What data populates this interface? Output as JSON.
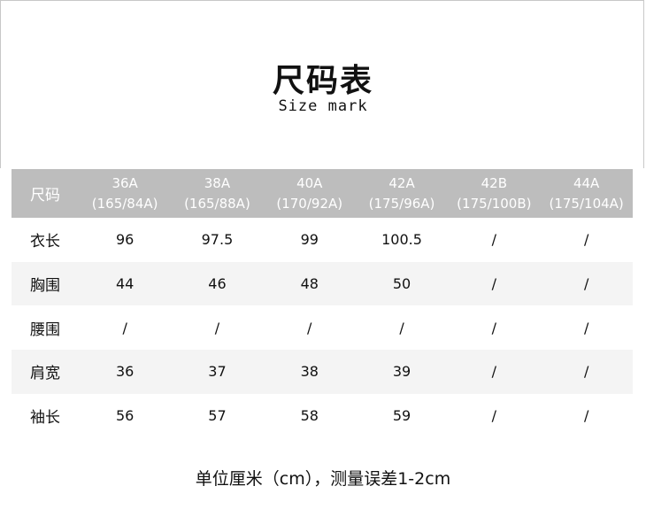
{
  "title": "尺码表",
  "subtitle": "Size mark",
  "table": {
    "header_label": "尺码",
    "columns": [
      {
        "size": "36A",
        "spec": "(165/84A)"
      },
      {
        "size": "38A",
        "spec": "(165/88A)"
      },
      {
        "size": "40A",
        "spec": "(170/92A)"
      },
      {
        "size": "42A",
        "spec": "(175/96A)"
      },
      {
        "size": "42B",
        "spec": "(175/100B)"
      },
      {
        "size": "44A",
        "spec": "(175/104A)"
      }
    ],
    "rows": [
      {
        "label": "衣长",
        "values": [
          "96",
          "97.5",
          "99",
          "100.5",
          "/",
          "/"
        ]
      },
      {
        "label": "胸围",
        "values": [
          "44",
          "46",
          "48",
          "50",
          "/",
          "/"
        ]
      },
      {
        "label": "腰围",
        "values": [
          "/",
          "/",
          "/",
          "/",
          "/",
          "/"
        ]
      },
      {
        "label": "肩宽",
        "values": [
          "36",
          "37",
          "38",
          "39",
          "/",
          "/"
        ]
      },
      {
        "label": "袖长",
        "values": [
          "56",
          "57",
          "58",
          "59",
          "/",
          "/"
        ]
      }
    ]
  },
  "footer": "单位厘米（cm），测量误差1-2cm",
  "colors": {
    "header_bg": "#bdbdbd",
    "alt_row_bg": "#f4f4f4"
  }
}
